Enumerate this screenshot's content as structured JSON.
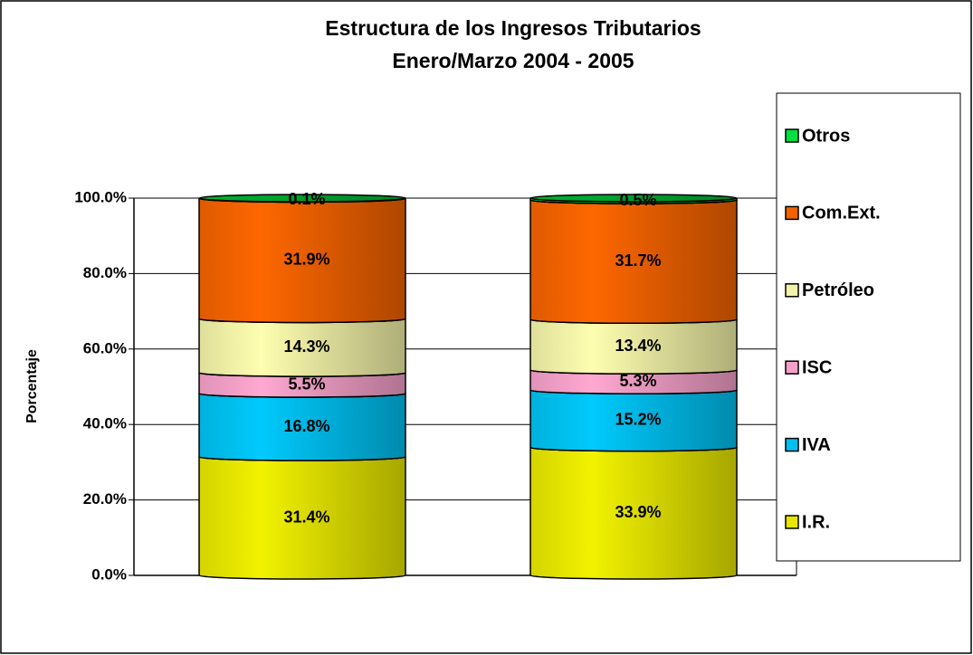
{
  "chart_data": {
    "type": "stacked-cylinder",
    "title": [
      "Estructura de los Ingresos Tributarios",
      "Enero/Marzo 2004 - 2005"
    ],
    "y_label": "Porcentaje",
    "categories": [
      null,
      null
    ],
    "series": [
      {
        "name": "I.R.",
        "color": "#e6e600",
        "values": [
          31.4,
          33.9
        ],
        "value_labels": [
          "31.4%",
          "33.9%"
        ]
      },
      {
        "name": "IVA",
        "color": "#00c0f0",
        "values": [
          16.8,
          15.2
        ],
        "value_labels": [
          "16.8%",
          "15.2%"
        ]
      },
      {
        "name": "ISC",
        "color": "#f4a0c8",
        "values": [
          5.5,
          5.3
        ],
        "value_labels": [
          "5.5%",
          "5.3%"
        ]
      },
      {
        "name": "Petróleo",
        "color": "#f2f2a8",
        "values": [
          14.3,
          13.4
        ],
        "value_labels": [
          "14.3%",
          "13.4%"
        ]
      },
      {
        "name": "Com.Ext.",
        "color": "#f26200",
        "values": [
          31.9,
          31.7
        ],
        "value_labels": [
          "31.9%",
          "31.7%"
        ]
      },
      {
        "name": "Otros",
        "color": "#00e040",
        "values": [
          0.1,
          0.5
        ],
        "value_labels": [
          "0.1%",
          "0.5%"
        ]
      }
    ],
    "ylim": [
      0,
      100
    ],
    "yticks": [
      {
        "value": 0,
        "label": "0.0%"
      },
      {
        "value": 20,
        "label": "20.0%"
      },
      {
        "value": 40,
        "label": "40.0%"
      },
      {
        "value": 60,
        "label": "60.0%"
      },
      {
        "value": 80,
        "label": "80.0%"
      },
      {
        "value": 100,
        "label": "100.0%"
      }
    ],
    "grid": true,
    "legend": "right"
  }
}
